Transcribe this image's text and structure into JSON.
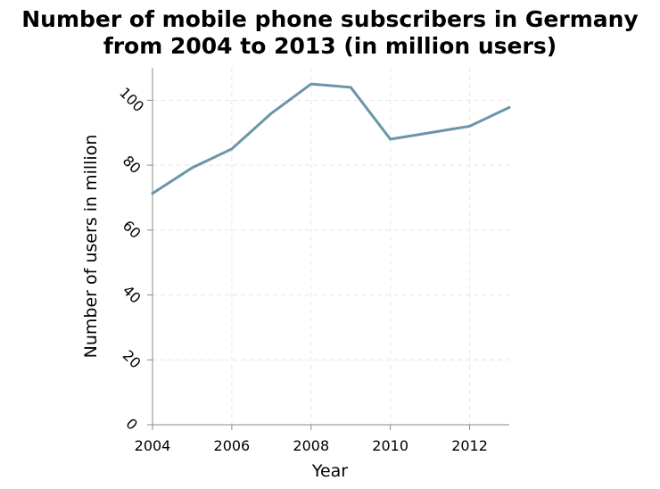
{
  "chart_data": {
    "type": "line",
    "title_lines": [
      "Number of mobile phone subscribers in Germany",
      "from 2004 to 2013 (in million users)"
    ],
    "xlabel": "Year",
    "ylabel": "Number of users in million",
    "x": [
      2004,
      2005,
      2006,
      2007,
      2008,
      2009,
      2010,
      2011,
      2012,
      2013
    ],
    "series": [
      {
        "name": "Mobile phone subscribers",
        "values": [
          71.3,
          79.2,
          85.0,
          96.0,
          105.0,
          104.0,
          88.0,
          90.0,
          92.0,
          97.8
        ]
      }
    ],
    "xlim": [
      2004,
      2013
    ],
    "ylim": [
      0,
      110
    ],
    "x_ticks": [
      2004,
      2006,
      2008,
      2010,
      2012
    ],
    "y_ticks": [
      0,
      20,
      40,
      60,
      80,
      100
    ],
    "grid": true,
    "line_color": "#6b95a8"
  }
}
